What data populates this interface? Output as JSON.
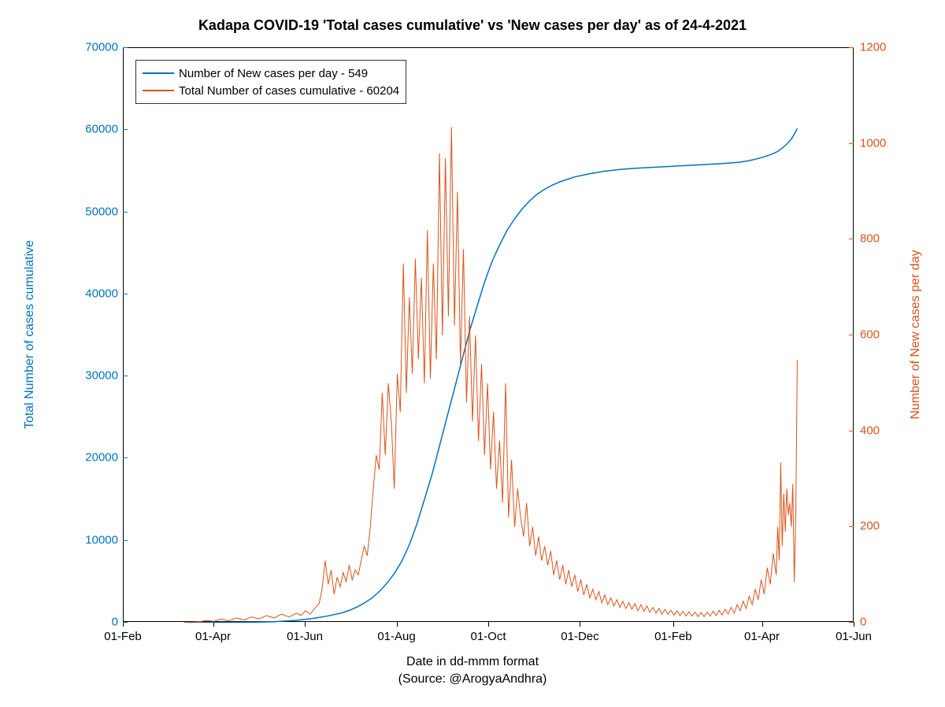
{
  "chart": {
    "type": "dual-axis-line",
    "title": "Kadapa COVID-19 'Total cases cumulative' vs 'New cases per day' as of 24-4-2021",
    "xlabel": "Date in dd-mmm format",
    "xlabel_sub": "(Source: @ArogyaAndhra)",
    "ylabel_left": "Total Number of cases cumulative",
    "ylabel_right": "Number of New cases per day",
    "title_fontsize": 18,
    "label_fontsize": 16,
    "tick_fontsize": 15,
    "background_color": "#ffffff",
    "plot_border_color": "#000000",
    "colors": {
      "left_axis": "#0072bd",
      "right_axis": "#d95319",
      "cumulative_line": "#0072bd",
      "daily_line": "#d95319"
    },
    "legend": {
      "position": "top-left-inside",
      "items": [
        {
          "label": "Number of New cases per day - 549",
          "color": "#0072bd"
        },
        {
          "label": "Total Number of cases cumulative - 60204",
          "color": "#d95319"
        }
      ]
    },
    "x_axis": {
      "range_days": [
        0,
        486
      ],
      "ticks": [
        {
          "label": "01-Feb",
          "day": 0
        },
        {
          "label": "01-Apr",
          "day": 60
        },
        {
          "label": "01-Jun",
          "day": 121
        },
        {
          "label": "01-Aug",
          "day": 182
        },
        {
          "label": "01-Oct",
          "day": 243
        },
        {
          "label": "01-Dec",
          "day": 304
        },
        {
          "label": "01-Feb",
          "day": 366
        },
        {
          "label": "01-Apr",
          "day": 425
        },
        {
          "label": "01-Jun",
          "day": 486
        }
      ]
    },
    "y_left": {
      "range": [
        0,
        70000
      ],
      "tick_step": 10000,
      "ticks": [
        "0",
        "10000",
        "20000",
        "30000",
        "40000",
        "50000",
        "60000",
        "70000"
      ],
      "color": "#0072bd"
    },
    "y_right": {
      "range": [
        0,
        1200
      ],
      "tick_step": 200,
      "ticks": [
        "0",
        "200",
        "400",
        "600",
        "800",
        "1000",
        "1200"
      ],
      "color": "#d95319"
    },
    "series_cumulative": {
      "axis": "left",
      "color": "#0072bd",
      "line_width": 1.5,
      "points": [
        [
          40,
          0
        ],
        [
          60,
          20
        ],
        [
          80,
          50
        ],
        [
          100,
          120
        ],
        [
          115,
          300
        ],
        [
          125,
          500
        ],
        [
          135,
          800
        ],
        [
          145,
          1200
        ],
        [
          150,
          1500
        ],
        [
          155,
          1900
        ],
        [
          160,
          2400
        ],
        [
          165,
          3000
        ],
        [
          170,
          3800
        ],
        [
          175,
          4800
        ],
        [
          180,
          6000
        ],
        [
          185,
          7500
        ],
        [
          190,
          9500
        ],
        [
          195,
          12000
        ],
        [
          200,
          15000
        ],
        [
          205,
          18000
        ],
        [
          210,
          21500
        ],
        [
          215,
          25000
        ],
        [
          220,
          28500
        ],
        [
          225,
          32000
        ],
        [
          230,
          35500
        ],
        [
          235,
          38500
        ],
        [
          240,
          41500
        ],
        [
          245,
          44000
        ],
        [
          250,
          46000
        ],
        [
          255,
          47800
        ],
        [
          260,
          49200
        ],
        [
          265,
          50400
        ],
        [
          270,
          51400
        ],
        [
          275,
          52200
        ],
        [
          280,
          52800
        ],
        [
          285,
          53300
        ],
        [
          290,
          53700
        ],
        [
          295,
          54000
        ],
        [
          300,
          54300
        ],
        [
          310,
          54700
        ],
        [
          320,
          55000
        ],
        [
          330,
          55200
        ],
        [
          340,
          55350
        ],
        [
          350,
          55450
        ],
        [
          360,
          55550
        ],
        [
          370,
          55650
        ],
        [
          380,
          55750
        ],
        [
          390,
          55850
        ],
        [
          400,
          55950
        ],
        [
          410,
          56100
        ],
        [
          415,
          56250
        ],
        [
          420,
          56450
        ],
        [
          425,
          56700
        ],
        [
          430,
          57000
        ],
        [
          435,
          57400
        ],
        [
          438,
          57800
        ],
        [
          441,
          58300
        ],
        [
          444,
          58900
        ],
        [
          446,
          59500
        ],
        [
          448,
          60204
        ]
      ]
    },
    "series_daily": {
      "axis": "right",
      "color": "#d95319",
      "line_width": 1,
      "points": [
        [
          40,
          0
        ],
        [
          50,
          2
        ],
        [
          55,
          5
        ],
        [
          60,
          3
        ],
        [
          65,
          8
        ],
        [
          70,
          4
        ],
        [
          75,
          10
        ],
        [
          80,
          6
        ],
        [
          85,
          12
        ],
        [
          90,
          8
        ],
        [
          95,
          15
        ],
        [
          100,
          10
        ],
        [
          105,
          18
        ],
        [
          110,
          12
        ],
        [
          115,
          20
        ],
        [
          118,
          15
        ],
        [
          121,
          25
        ],
        [
          124,
          18
        ],
        [
          127,
          30
        ],
        [
          130,
          40
        ],
        [
          132,
          70
        ],
        [
          134,
          130
        ],
        [
          136,
          80
        ],
        [
          138,
          110
        ],
        [
          140,
          60
        ],
        [
          142,
          95
        ],
        [
          144,
          75
        ],
        [
          146,
          105
        ],
        [
          148,
          85
        ],
        [
          150,
          120
        ],
        [
          152,
          90
        ],
        [
          154,
          110
        ],
        [
          156,
          100
        ],
        [
          158,
          130
        ],
        [
          160,
          160
        ],
        [
          162,
          140
        ],
        [
          164,
          200
        ],
        [
          166,
          280
        ],
        [
          168,
          350
        ],
        [
          170,
          320
        ],
        [
          172,
          480
        ],
        [
          174,
          350
        ],
        [
          176,
          500
        ],
        [
          178,
          420
        ],
        [
          180,
          280
        ],
        [
          182,
          520
        ],
        [
          184,
          440
        ],
        [
          186,
          750
        ],
        [
          188,
          480
        ],
        [
          190,
          680
        ],
        [
          192,
          520
        ],
        [
          194,
          760
        ],
        [
          196,
          550
        ],
        [
          198,
          720
        ],
        [
          200,
          500
        ],
        [
          202,
          820
        ],
        [
          204,
          510
        ],
        [
          206,
          750
        ],
        [
          208,
          550
        ],
        [
          210,
          980
        ],
        [
          212,
          600
        ],
        [
          214,
          970
        ],
        [
          216,
          640
        ],
        [
          218,
          1035
        ],
        [
          220,
          620
        ],
        [
          222,
          900
        ],
        [
          224,
          540
        ],
        [
          226,
          780
        ],
        [
          228,
          460
        ],
        [
          230,
          640
        ],
        [
          232,
          420
        ],
        [
          234,
          600
        ],
        [
          236,
          380
        ],
        [
          238,
          540
        ],
        [
          240,
          350
        ],
        [
          242,
          500
        ],
        [
          244,
          320
        ],
        [
          246,
          440
        ],
        [
          248,
          280
        ],
        [
          250,
          380
        ],
        [
          252,
          250
        ],
        [
          254,
          500
        ],
        [
          256,
          220
        ],
        [
          258,
          340
        ],
        [
          260,
          200
        ],
        [
          262,
          280
        ],
        [
          264,
          220
        ],
        [
          266,
          180
        ],
        [
          268,
          250
        ],
        [
          270,
          160
        ],
        [
          272,
          200
        ],
        [
          274,
          140
        ],
        [
          276,
          180
        ],
        [
          278,
          130
        ],
        [
          280,
          160
        ],
        [
          282,
          120
        ],
        [
          284,
          150
        ],
        [
          286,
          100
        ],
        [
          288,
          130
        ],
        [
          290,
          90
        ],
        [
          292,
          120
        ],
        [
          294,
          80
        ],
        [
          296,
          110
        ],
        [
          298,
          75
        ],
        [
          300,
          100
        ],
        [
          302,
          65
        ],
        [
          304,
          90
        ],
        [
          306,
          58
        ],
        [
          308,
          80
        ],
        [
          310,
          52
        ],
        [
          312,
          70
        ],
        [
          314,
          48
        ],
        [
          316,
          65
        ],
        [
          318,
          42
        ],
        [
          320,
          58
        ],
        [
          322,
          38
        ],
        [
          324,
          52
        ],
        [
          326,
          35
        ],
        [
          328,
          48
        ],
        [
          330,
          32
        ],
        [
          332,
          45
        ],
        [
          334,
          30
        ],
        [
          336,
          42
        ],
        [
          338,
          28
        ],
        [
          340,
          40
        ],
        [
          342,
          25
        ],
        [
          344,
          38
        ],
        [
          346,
          24
        ],
        [
          348,
          35
        ],
        [
          350,
          22
        ],
        [
          352,
          32
        ],
        [
          354,
          20
        ],
        [
          356,
          30
        ],
        [
          358,
          18
        ],
        [
          360,
          28
        ],
        [
          362,
          18
        ],
        [
          364,
          26
        ],
        [
          366,
          16
        ],
        [
          368,
          25
        ],
        [
          370,
          15
        ],
        [
          372,
          24
        ],
        [
          374,
          14
        ],
        [
          376,
          23
        ],
        [
          378,
          14
        ],
        [
          380,
          22
        ],
        [
          382,
          13
        ],
        [
          384,
          21
        ],
        [
          386,
          13
        ],
        [
          388,
          22
        ],
        [
          390,
          14
        ],
        [
          392,
          24
        ],
        [
          394,
          15
        ],
        [
          396,
          26
        ],
        [
          398,
          16
        ],
        [
          400,
          28
        ],
        [
          402,
          18
        ],
        [
          404,
          32
        ],
        [
          406,
          20
        ],
        [
          408,
          38
        ],
        [
          410,
          25
        ],
        [
          412,
          45
        ],
        [
          414,
          30
        ],
        [
          416,
          55
        ],
        [
          418,
          38
        ],
        [
          420,
          70
        ],
        [
          422,
          48
        ],
        [
          424,
          90
        ],
        [
          426,
          60
        ],
        [
          428,
          115
        ],
        [
          430,
          80
        ],
        [
          432,
          145
        ],
        [
          434,
          100
        ],
        [
          435,
          200
        ],
        [
          436,
          130
        ],
        [
          437,
          335
        ],
        [
          438,
          160
        ],
        [
          439,
          270
        ],
        [
          440,
          190
        ],
        [
          441,
          280
        ],
        [
          442,
          225
        ],
        [
          443,
          250
        ],
        [
          444,
          200
        ],
        [
          445,
          290
        ],
        [
          446,
          85
        ],
        [
          447,
          220
        ],
        [
          448,
          549
        ]
      ]
    }
  }
}
